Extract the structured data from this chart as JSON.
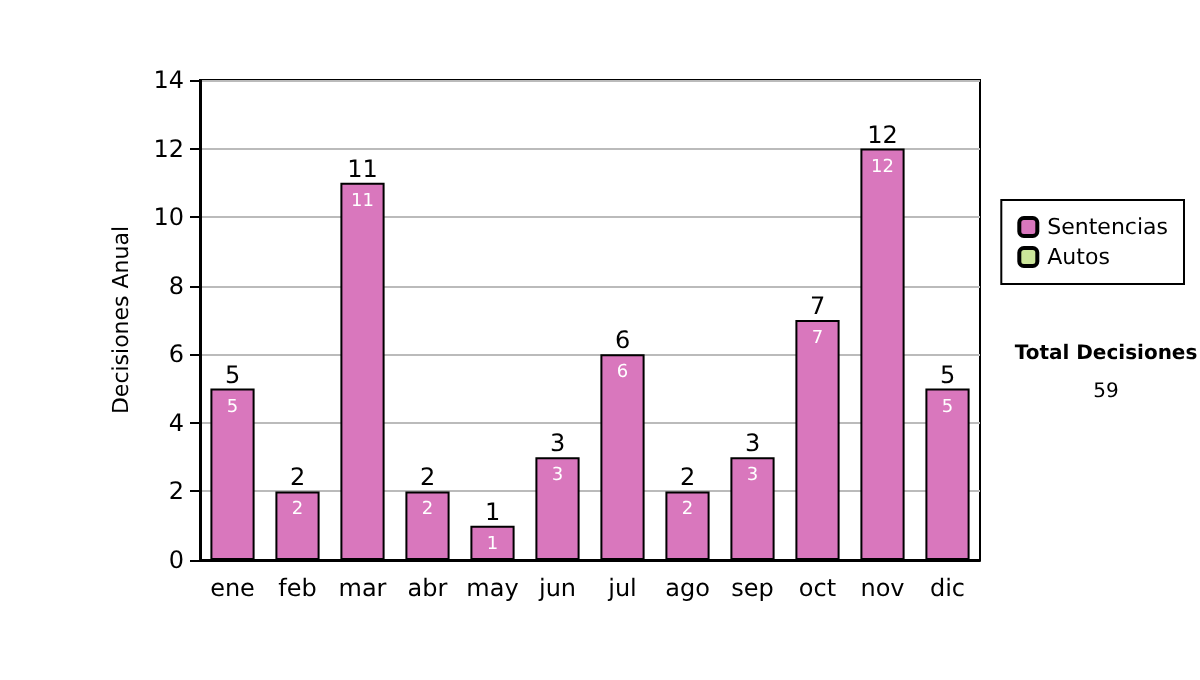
{
  "chart_data": {
    "type": "bar",
    "stacked": true,
    "ylabel": "Decisiones Anual",
    "categories": [
      "ene",
      "feb",
      "mar",
      "abr",
      "may",
      "jun",
      "jul",
      "ago",
      "sep",
      "oct",
      "nov",
      "dic"
    ],
    "series": [
      {
        "name": "Sentencias",
        "color": "#d977bd",
        "values": [
          5,
          2,
          11,
          2,
          1,
          3,
          6,
          2,
          3,
          7,
          12,
          5
        ],
        "value_labels": [
          "5",
          "2",
          "11",
          "2",
          "1",
          "3",
          "6",
          "2",
          "3",
          "7",
          "12",
          "5"
        ]
      },
      {
        "name": "Autos",
        "color": "#cce69a",
        "values": [
          0,
          0,
          0,
          0,
          0,
          0,
          0,
          0,
          0,
          0,
          0,
          0
        ]
      }
    ],
    "totals": [
      "5",
      "2",
      "11",
      "2",
      "1",
      "3",
      "6",
      "2",
      "3",
      "7",
      "12",
      "5"
    ],
    "ylim": [
      0,
      14
    ],
    "yticks": [
      0,
      2,
      4,
      6,
      8,
      10,
      12,
      14
    ],
    "grid": "y",
    "legend": "right",
    "annotations": [
      "Total Decisiones",
      "59"
    ]
  }
}
